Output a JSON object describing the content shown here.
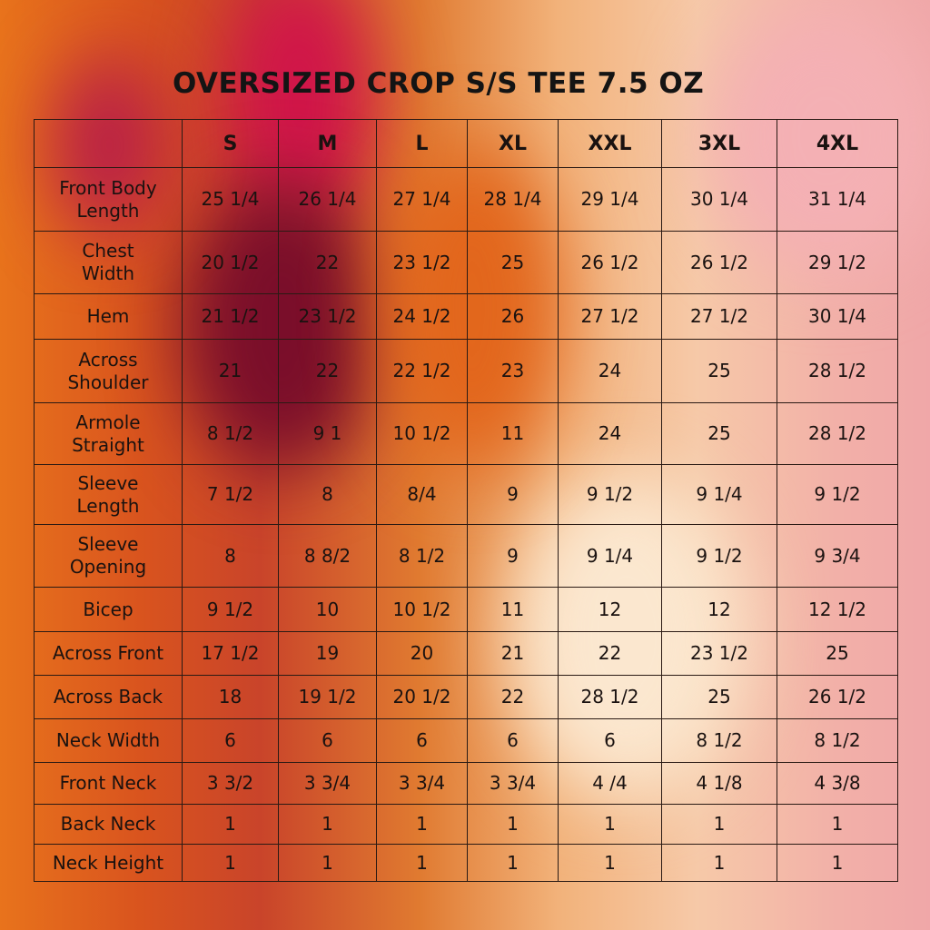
{
  "title": "OVERSIZED CROP S/S TEE 7.5 OZ",
  "table": {
    "header": [
      "S",
      "M",
      "L",
      "XL",
      "XXL",
      "3XL",
      "4XL"
    ],
    "rows": [
      {
        "label": "Front Body\nLength",
        "cells": [
          "25 1/4",
          "26 1/4",
          "27 1/4",
          "28 1/4",
          "29 1/4",
          "30 1/4",
          "31 1/4"
        ]
      },
      {
        "label": "Chest\nWidth",
        "cells": [
          "20 1/2",
          "22",
          "23 1/2",
          "25",
          "26 1/2",
          "26 1/2",
          "29 1/2"
        ]
      },
      {
        "label": "Hem",
        "cells": [
          "21 1/2",
          "23 1/2",
          "24 1/2",
          "26",
          "27 1/2",
          "27 1/2",
          "30 1/4"
        ]
      },
      {
        "label": "Across\nShoulder",
        "cells": [
          "21",
          "22",
          "22 1/2",
          "23",
          "24",
          "25",
          "28 1/2"
        ]
      },
      {
        "label": "Armole\nStraight",
        "cells": [
          "8 1/2",
          "9 1",
          "10 1/2",
          "11",
          "24",
          "25",
          "28 1/2"
        ]
      },
      {
        "label": "Sleeve\nLength",
        "cells": [
          "7 1/2",
          "8",
          "8/4",
          "9",
          "9 1/2",
          "9 1/4",
          "9 1/2"
        ]
      },
      {
        "label": "Sleeve\nOpening",
        "cells": [
          "8",
          "8 8/2",
          "8 1/2",
          "9",
          "9 1/4",
          "9 1/2",
          "9 3/4"
        ]
      },
      {
        "label": "Bicep",
        "cells": [
          "9 1/2",
          "10",
          "10 1/2",
          "11",
          "12",
          "12",
          "12 1/2"
        ]
      },
      {
        "label": "Across Front",
        "cells": [
          "17 1/2",
          "19",
          "20",
          "21",
          "22",
          "23 1/2",
          "25"
        ]
      },
      {
        "label": "Across Back",
        "cells": [
          "18",
          "19 1/2",
          "20 1/2",
          "22",
          "28 1/2",
          "25",
          "26 1/2"
        ]
      },
      {
        "label": "Neck Width",
        "cells": [
          "6",
          "6",
          "6",
          "6",
          "6",
          "8 1/2",
          "8 1/2"
        ]
      },
      {
        "label": "Front Neck",
        "cells": [
          "3 3/2",
          "3 3/4",
          "3 3/4",
          "3 3/4",
          "4 /4",
          "4 1/8",
          "4 3/8"
        ]
      },
      {
        "label": "Back Neck",
        "cells": [
          "1",
          "1",
          "1",
          "1",
          "1",
          "1",
          "1"
        ]
      },
      {
        "label": "Neck Height",
        "cells": [
          "1",
          "1",
          "1",
          "1",
          "1",
          "1",
          "1"
        ]
      }
    ]
  }
}
